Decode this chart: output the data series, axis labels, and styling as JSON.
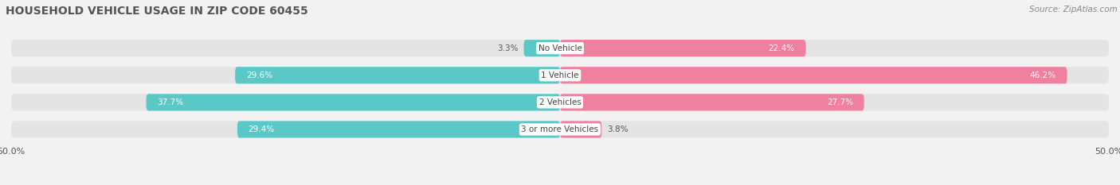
{
  "title": "HOUSEHOLD VEHICLE USAGE IN ZIP CODE 60455",
  "source": "Source: ZipAtlas.com",
  "categories": [
    "No Vehicle",
    "1 Vehicle",
    "2 Vehicles",
    "3 or more Vehicles"
  ],
  "owner_values": [
    3.3,
    29.6,
    37.7,
    29.4
  ],
  "renter_values": [
    22.4,
    46.2,
    27.7,
    3.8
  ],
  "owner_color": "#5BC8C8",
  "renter_color": "#F080A0",
  "background_color": "#f2f2f2",
  "bar_background_color": "#e4e4e4",
  "axis_max": 50.0,
  "title_fontsize": 10,
  "source_fontsize": 7.5,
  "label_fontsize": 7.5,
  "axis_label_fontsize": 8
}
